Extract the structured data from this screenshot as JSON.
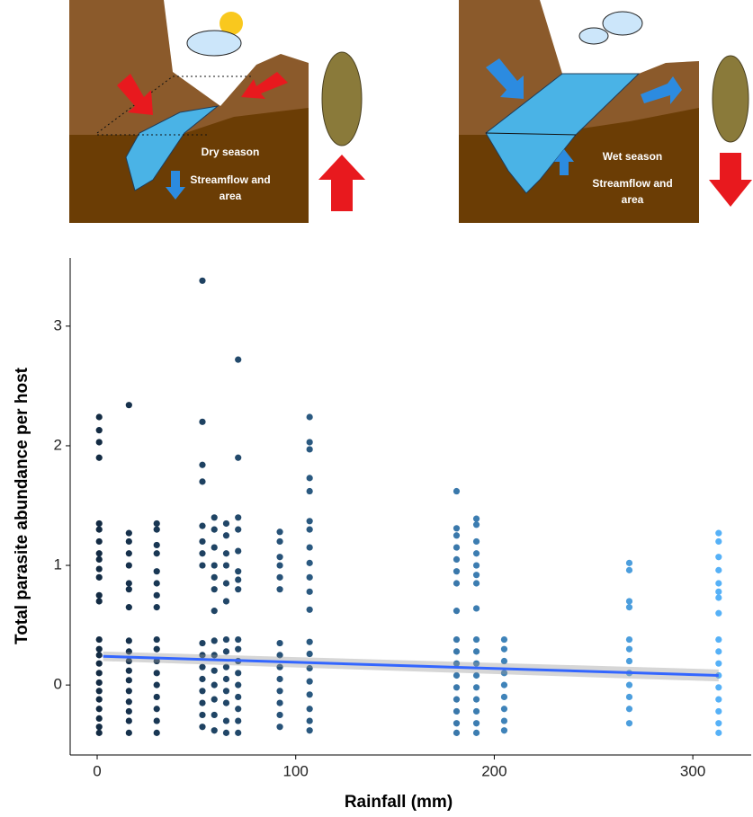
{
  "illustration": {
    "dry": {
      "label": "Dry season",
      "caption": [
        "Streamflow and",
        "area"
      ]
    },
    "wet": {
      "label": "Wet season",
      "caption": [
        "Streamflow and",
        "area"
      ]
    }
  },
  "chart_data": {
    "type": "scatter",
    "xlabel": "Rainfall (mm)",
    "ylabel": "Total parasite abundance per host",
    "xlim": [
      -13.6,
      329.4
    ],
    "ylim": [
      -0.585,
      3.57
    ],
    "xticks": [
      0,
      100,
      200,
      300
    ],
    "yticks": [
      0,
      1,
      2,
      3
    ],
    "grid": false,
    "color_scale": [
      "#132B43",
      "#56B1F7"
    ],
    "points": [
      [
        1,
        2.24
      ],
      [
        1,
        2.13
      ],
      [
        1,
        2.03
      ],
      [
        1,
        1.9
      ],
      [
        1,
        1.35
      ],
      [
        1,
        1.3
      ],
      [
        1,
        1.2
      ],
      [
        1,
        1.1
      ],
      [
        1,
        1.05
      ],
      [
        1,
        0.97
      ],
      [
        1,
        0.9
      ],
      [
        1,
        0.75
      ],
      [
        1,
        0.7
      ],
      [
        1,
        0.38
      ],
      [
        1,
        0.3
      ],
      [
        1,
        0.25
      ],
      [
        1,
        0.18
      ],
      [
        1,
        0.1
      ],
      [
        1,
        0.02
      ],
      [
        1,
        -0.05
      ],
      [
        1,
        -0.12
      ],
      [
        1,
        -0.2
      ],
      [
        1,
        -0.28
      ],
      [
        1,
        -0.35
      ],
      [
        1,
        -0.4
      ],
      [
        16,
        2.34
      ],
      [
        16,
        1.27
      ],
      [
        16,
        1.2
      ],
      [
        16,
        1.1
      ],
      [
        16,
        1.0
      ],
      [
        16,
        0.85
      ],
      [
        16,
        0.8
      ],
      [
        16,
        0.65
      ],
      [
        16,
        0.37
      ],
      [
        16,
        0.28
      ],
      [
        16,
        0.2
      ],
      [
        16,
        0.12
      ],
      [
        16,
        0.04
      ],
      [
        16,
        -0.05
      ],
      [
        16,
        -0.14
      ],
      [
        16,
        -0.22
      ],
      [
        16,
        -0.3
      ],
      [
        16,
        -0.4
      ],
      [
        30,
        1.35
      ],
      [
        30,
        1.3
      ],
      [
        30,
        1.17
      ],
      [
        30,
        1.1
      ],
      [
        30,
        0.95
      ],
      [
        30,
        0.85
      ],
      [
        30,
        0.75
      ],
      [
        30,
        0.65
      ],
      [
        30,
        0.38
      ],
      [
        30,
        0.3
      ],
      [
        30,
        0.2
      ],
      [
        30,
        0.1
      ],
      [
        30,
        0
      ],
      [
        30,
        -0.1
      ],
      [
        30,
        -0.2
      ],
      [
        30,
        -0.3
      ],
      [
        30,
        -0.4
      ],
      [
        53,
        3.38
      ],
      [
        53,
        2.2
      ],
      [
        53,
        1.84
      ],
      [
        53,
        1.7
      ],
      [
        53,
        1.33
      ],
      [
        53,
        1.2
      ],
      [
        53,
        1.1
      ],
      [
        53,
        1.0
      ],
      [
        53,
        0.35
      ],
      [
        53,
        0.25
      ],
      [
        53,
        0.15
      ],
      [
        53,
        0.05
      ],
      [
        53,
        -0.05
      ],
      [
        53,
        -0.15
      ],
      [
        53,
        -0.25
      ],
      [
        53,
        -0.35
      ],
      [
        59,
        1.4
      ],
      [
        59,
        1.3
      ],
      [
        59,
        1.15
      ],
      [
        59,
        1.0
      ],
      [
        59,
        0.9
      ],
      [
        59,
        0.8
      ],
      [
        59,
        0.62
      ],
      [
        59,
        0.37
      ],
      [
        59,
        0.25
      ],
      [
        59,
        0.12
      ],
      [
        59,
        0
      ],
      [
        59,
        -0.12
      ],
      [
        59,
        -0.25
      ],
      [
        59,
        -0.38
      ],
      [
        65,
        1.35
      ],
      [
        65,
        1.25
      ],
      [
        65,
        1.1
      ],
      [
        65,
        1.0
      ],
      [
        65,
        0.85
      ],
      [
        65,
        0.7
      ],
      [
        65,
        0.38
      ],
      [
        65,
        0.28
      ],
      [
        65,
        0.15
      ],
      [
        65,
        0.05
      ],
      [
        65,
        -0.05
      ],
      [
        65,
        -0.15
      ],
      [
        65,
        -0.3
      ],
      [
        65,
        -0.4
      ],
      [
        71,
        2.72
      ],
      [
        71,
        1.9
      ],
      [
        71,
        1.4
      ],
      [
        71,
        1.3
      ],
      [
        71,
        1.12
      ],
      [
        71,
        0.95
      ],
      [
        71,
        0.88
      ],
      [
        71,
        0.8
      ],
      [
        71,
        0.38
      ],
      [
        71,
        0.3
      ],
      [
        71,
        0.2
      ],
      [
        71,
        0.1
      ],
      [
        71,
        0
      ],
      [
        71,
        -0.1
      ],
      [
        71,
        -0.2
      ],
      [
        71,
        -0.3
      ],
      [
        71,
        -0.4
      ],
      [
        92,
        1.28
      ],
      [
        92,
        1.2
      ],
      [
        92,
        1.07
      ],
      [
        92,
        1.0
      ],
      [
        92,
        0.9
      ],
      [
        92,
        0.8
      ],
      [
        92,
        0.35
      ],
      [
        92,
        0.25
      ],
      [
        92,
        0.15
      ],
      [
        92,
        0.05
      ],
      [
        92,
        -0.05
      ],
      [
        92,
        -0.15
      ],
      [
        92,
        -0.25
      ],
      [
        92,
        -0.35
      ],
      [
        107,
        2.24
      ],
      [
        107,
        2.03
      ],
      [
        107,
        1.97
      ],
      [
        107,
        1.73
      ],
      [
        107,
        1.62
      ],
      [
        107,
        1.37
      ],
      [
        107,
        1.3
      ],
      [
        107,
        1.15
      ],
      [
        107,
        1.02
      ],
      [
        107,
        0.9
      ],
      [
        107,
        0.78
      ],
      [
        107,
        0.63
      ],
      [
        107,
        0.36
      ],
      [
        107,
        0.26
      ],
      [
        107,
        0.14
      ],
      [
        107,
        0.03
      ],
      [
        107,
        -0.08
      ],
      [
        107,
        -0.2
      ],
      [
        107,
        -0.3
      ],
      [
        107,
        -0.38
      ],
      [
        181,
        1.62
      ],
      [
        181,
        1.31
      ],
      [
        181,
        1.25
      ],
      [
        181,
        1.15
      ],
      [
        181,
        1.05
      ],
      [
        181,
        0.95
      ],
      [
        181,
        0.85
      ],
      [
        181,
        0.62
      ],
      [
        181,
        0.38
      ],
      [
        181,
        0.28
      ],
      [
        181,
        0.18
      ],
      [
        181,
        0.08
      ],
      [
        181,
        -0.02
      ],
      [
        181,
        -0.12
      ],
      [
        181,
        -0.22
      ],
      [
        181,
        -0.32
      ],
      [
        181,
        -0.4
      ],
      [
        191,
        1.39
      ],
      [
        191,
        1.34
      ],
      [
        191,
        1.2
      ],
      [
        191,
        1.1
      ],
      [
        191,
        1.0
      ],
      [
        191,
        0.92
      ],
      [
        191,
        0.85
      ],
      [
        191,
        0.64
      ],
      [
        191,
        0.38
      ],
      [
        191,
        0.28
      ],
      [
        191,
        0.18
      ],
      [
        191,
        0.08
      ],
      [
        191,
        -0.02
      ],
      [
        191,
        -0.12
      ],
      [
        191,
        -0.22
      ],
      [
        191,
        -0.32
      ],
      [
        191,
        -0.4
      ],
      [
        205,
        0.38
      ],
      [
        205,
        0.3
      ],
      [
        205,
        0.2
      ],
      [
        205,
        0.1
      ],
      [
        205,
        0
      ],
      [
        205,
        -0.1
      ],
      [
        205,
        -0.2
      ],
      [
        205,
        -0.3
      ],
      [
        205,
        -0.38
      ],
      [
        268,
        1.02
      ],
      [
        268,
        0.96
      ],
      [
        268,
        0.7
      ],
      [
        268,
        0.65
      ],
      [
        268,
        0.38
      ],
      [
        268,
        0.3
      ],
      [
        268,
        0.2
      ],
      [
        268,
        0.1
      ],
      [
        268,
        0
      ],
      [
        268,
        -0.1
      ],
      [
        268,
        -0.2
      ],
      [
        268,
        -0.32
      ],
      [
        313,
        1.27
      ],
      [
        313,
        1.2
      ],
      [
        313,
        1.07
      ],
      [
        313,
        0.96
      ],
      [
        313,
        0.85
      ],
      [
        313,
        0.78
      ],
      [
        313,
        0.73
      ],
      [
        313,
        0.6
      ],
      [
        313,
        0.38
      ],
      [
        313,
        0.28
      ],
      [
        313,
        0.18
      ],
      [
        313,
        0.08
      ],
      [
        313,
        -0.02
      ],
      [
        313,
        -0.12
      ],
      [
        313,
        -0.22
      ],
      [
        313,
        -0.32
      ],
      [
        313,
        -0.4
      ]
    ],
    "fit": {
      "x": [
        3,
        313
      ],
      "y": [
        0.24,
        0.08
      ],
      "lower": [
        0.2,
        0.03
      ],
      "upper": [
        0.28,
        0.13
      ],
      "color": "#3366FF"
    }
  }
}
